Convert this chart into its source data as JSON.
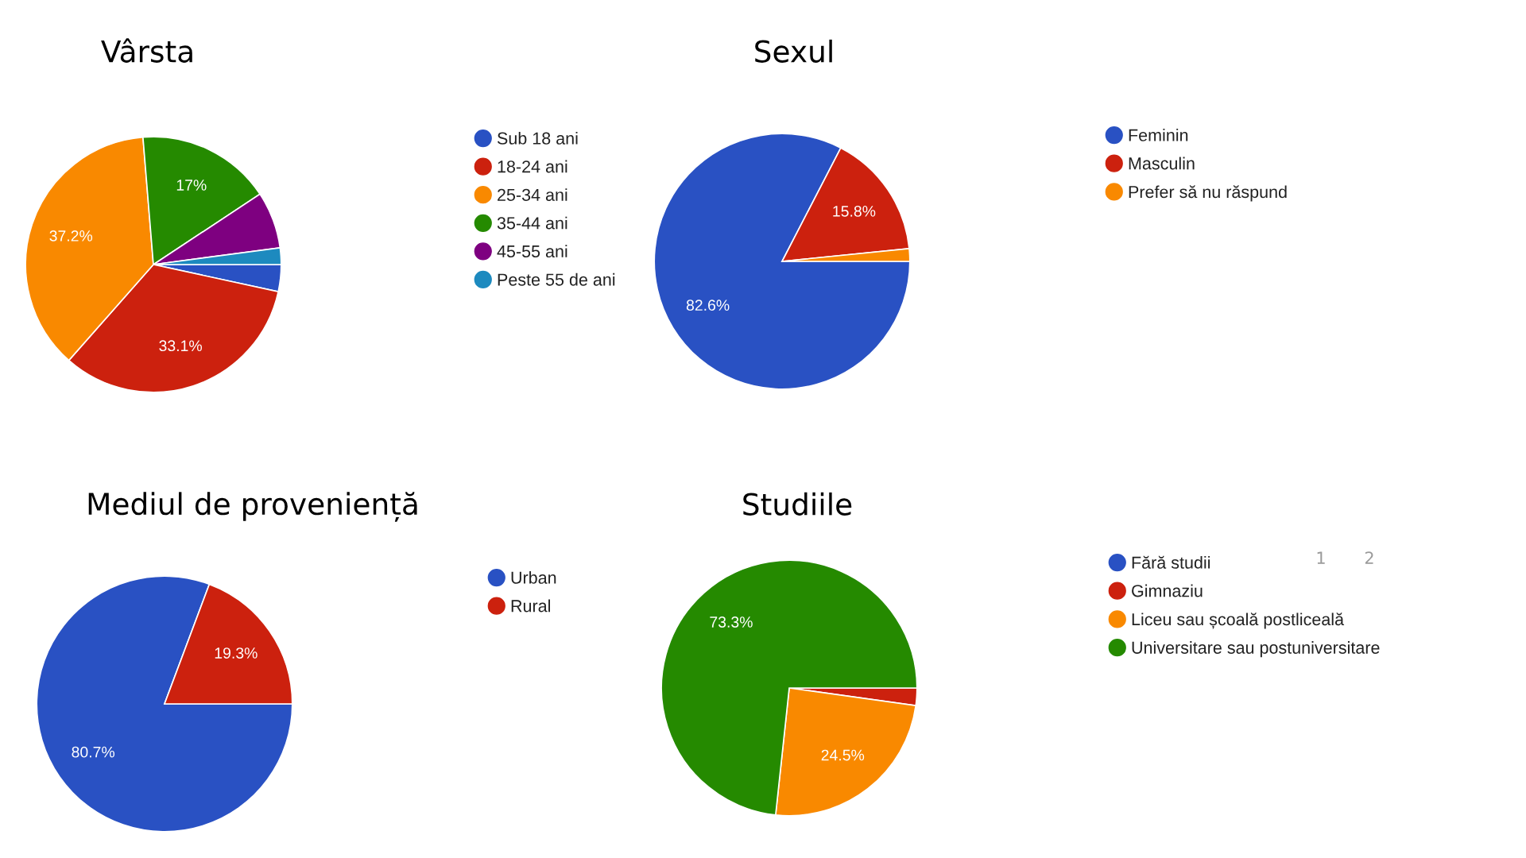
{
  "chart_data": [
    {
      "type": "pie",
      "title": "Vârsta",
      "categories": [
        "Sub 18 ani",
        "18-24 ani",
        "25-34 ani",
        "35-44 ani",
        "45-55 ani",
        "Peste 55 de ani"
      ],
      "values": [
        3.4,
        33.1,
        37.2,
        17,
        7.2,
        2.1
      ],
      "colors": [
        "#2951c3",
        "#cc210e",
        "#f98900",
        "#258a00",
        "#7e0080",
        "#1d8abf"
      ],
      "value_labels": [
        null,
        "33.1%",
        "37.2%",
        "17%",
        null,
        null
      ],
      "legend": "right"
    },
    {
      "type": "pie",
      "title": "Sexul",
      "categories": [
        "Feminin",
        "Masculin",
        "Prefer să nu răspund"
      ],
      "values": [
        82.6,
        15.8,
        1.6
      ],
      "colors": [
        "#2951c3",
        "#cc210e",
        "#f98900"
      ],
      "value_labels": [
        "82.6%",
        "15.8%",
        null
      ],
      "legend": "right"
    },
    {
      "type": "pie",
      "title": "Mediul de proveniență",
      "categories": [
        "Urban",
        "Rural"
      ],
      "values": [
        80.7,
        19.3
      ],
      "colors": [
        "#2951c3",
        "#cc210e"
      ],
      "value_labels": [
        "80.7%",
        "19.3%"
      ],
      "legend": "right"
    },
    {
      "type": "pie",
      "title": "Studiile",
      "categories": [
        "Fără studii",
        "Gimnaziu",
        "Liceu sau școală postliceală",
        "Universitare sau postuniversitare"
      ],
      "values": [
        0,
        2.2,
        24.5,
        73.3
      ],
      "colors": [
        "#2951c3",
        "#cc210e",
        "#f98900",
        "#258a00"
      ],
      "value_labels": [
        null,
        null,
        "24.5%",
        "73.3%"
      ],
      "legend": "right",
      "annotations": [
        "1",
        "2"
      ]
    }
  ]
}
